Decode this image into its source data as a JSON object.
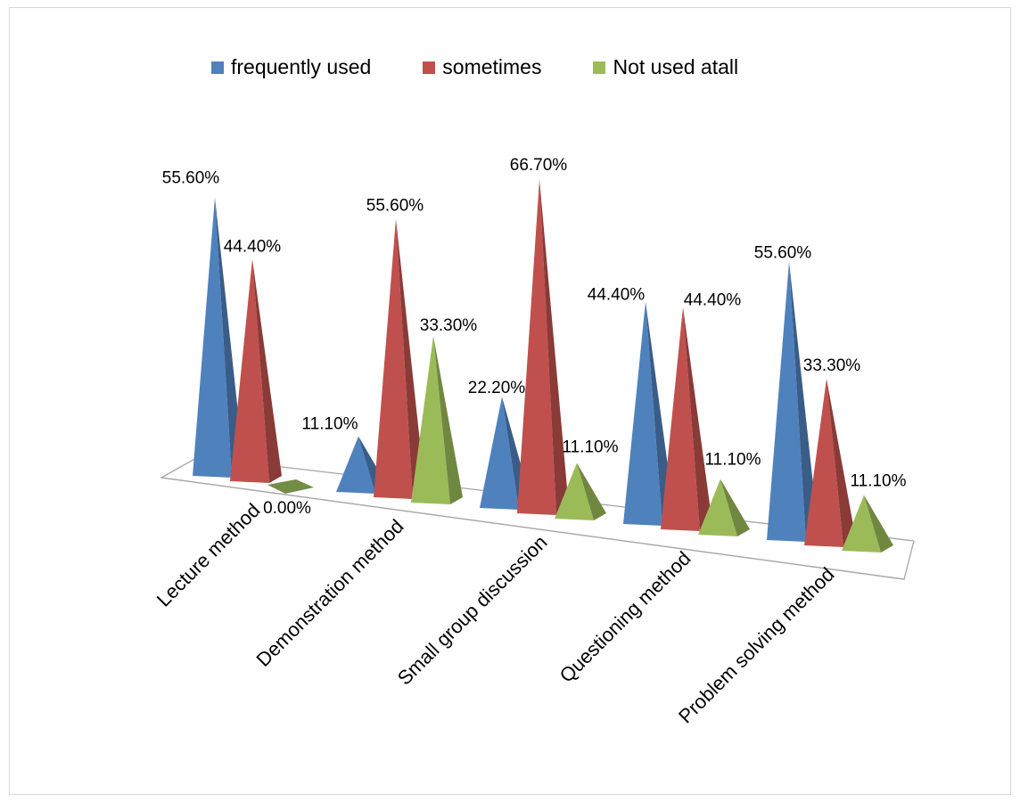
{
  "chart_data": {
    "type": "bar",
    "style": "3d-pyramid",
    "title": "",
    "xlabel": "",
    "ylabel": "",
    "ylim": [
      0,
      70
    ],
    "grid": false,
    "legend_position": "top",
    "categories": [
      "Lecture method",
      "Demonstration method",
      "Small group discussion",
      "Questioning method",
      "Problem solving method"
    ],
    "series": [
      {
        "name": "frequently used",
        "color": "#4f81bd",
        "values": [
          55.6,
          11.1,
          22.2,
          44.4,
          55.6
        ],
        "labels": [
          "55.60%",
          "11.10%",
          "22.20%",
          "44.40%",
          "55.60%"
        ]
      },
      {
        "name": "sometimes",
        "color": "#c0504d",
        "values": [
          44.4,
          55.6,
          66.7,
          44.4,
          33.3
        ],
        "labels": [
          "44.40%",
          "55.60%",
          "66.70%",
          "44.40%",
          "33.30%"
        ]
      },
      {
        "name": "Not used atall",
        "color": "#9bbb59",
        "values": [
          0.0,
          33.3,
          11.1,
          11.1,
          11.1
        ],
        "labels": [
          "0.00%",
          "33.30%",
          "11.10%",
          "11.10%",
          "11.10%"
        ]
      }
    ]
  }
}
